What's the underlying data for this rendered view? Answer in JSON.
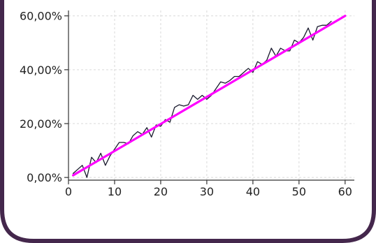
{
  "colors": {
    "frame": "#44274c",
    "background": "#ffffff",
    "grid": "#d9d9d9",
    "axis": "#333333",
    "data_line": "#1a1a2e",
    "trend_line": "#ff00ff"
  },
  "chart_data": {
    "type": "line",
    "title": "",
    "xlabel": "",
    "ylabel": "",
    "xlim": [
      0,
      62
    ],
    "ylim": [
      -1,
      62
    ],
    "grid": true,
    "legend": "none",
    "x_ticks": [
      0,
      10,
      20,
      30,
      40,
      50,
      60
    ],
    "x_tick_labels": [
      "0",
      "10",
      "20",
      "30",
      "40",
      "50",
      "60"
    ],
    "y_ticks": [
      0,
      20,
      40,
      60
    ],
    "y_tick_labels": [
      "0,00%",
      "20,00%",
      "40,00%",
      "60,00%"
    ],
    "series": [
      {
        "style": "data",
        "x": [
          1,
          2,
          3,
          4,
          5,
          6,
          7,
          8,
          9,
          10,
          11,
          12,
          13,
          14,
          15,
          16,
          17,
          18,
          19,
          20,
          21,
          22,
          23,
          24,
          25,
          26,
          27,
          28,
          29,
          30,
          31,
          32,
          33,
          34,
          35,
          36,
          37,
          38,
          39,
          40,
          41,
          42,
          43,
          44,
          45,
          46,
          47,
          48,
          49,
          50,
          51,
          52,
          53,
          54,
          55,
          56,
          57
        ],
        "y": [
          1.5,
          3.0,
          4.5,
          0.0,
          7.5,
          5.5,
          9.0,
          4.5,
          8.0,
          10.5,
          13.0,
          13.0,
          12.5,
          15.5,
          17.0,
          16.0,
          18.5,
          15.0,
          19.5,
          19.0,
          21.5,
          20.5,
          26.0,
          27.0,
          26.5,
          27.0,
          30.5,
          29.0,
          30.5,
          29.0,
          30.5,
          33.0,
          35.5,
          35.0,
          36.0,
          37.5,
          37.5,
          39.0,
          40.5,
          39.0,
          43.0,
          42.0,
          43.5,
          48.0,
          45.0,
          48.0,
          47.0,
          47.0,
          51.0,
          50.0,
          52.0,
          55.5,
          51.0,
          56.0,
          56.5,
          56.5,
          58.0
        ]
      },
      {
        "style": "trend",
        "x": [
          1,
          60
        ],
        "y": [
          0.8,
          60.0
        ]
      }
    ]
  }
}
